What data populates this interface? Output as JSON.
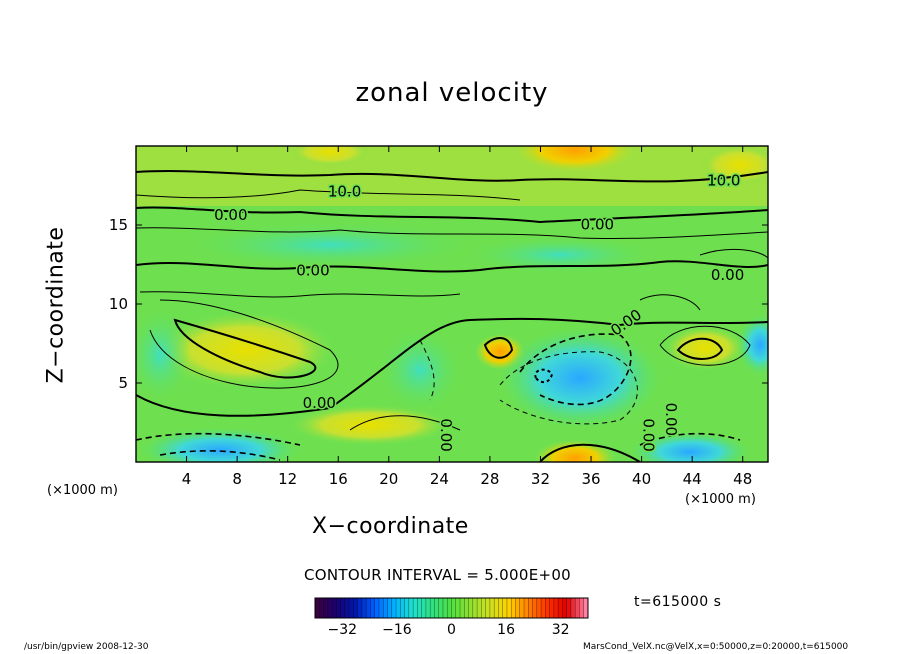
{
  "chart_data": {
    "type": "heatmap",
    "title": "zonal velocity",
    "xlabel": "X−coordinate",
    "ylabel": "Z−coordinate",
    "x_unit_label": "(×1000 m)",
    "xlim": [
      0,
      50
    ],
    "ylim": [
      0,
      20
    ],
    "x_ticks": [
      "4",
      "8",
      "12",
      "16",
      "20",
      "24",
      "28",
      "32",
      "36",
      "40",
      "44",
      "48"
    ],
    "y_ticks": [
      "5",
      "10",
      "15"
    ],
    "contour_labels": [
      "10.0",
      "10.0",
      "0.00",
      "0.00",
      "0.00",
      "0.00",
      "0.00",
      "0.00",
      "0.00",
      "0.00",
      "0.00"
    ],
    "contour_interval": "CONTOUR INTERVAL = 5.000E+00",
    "colorbar": {
      "range": [
        -40,
        40
      ],
      "ticks": [
        "−32",
        "−16",
        "0",
        "16",
        "32"
      ],
      "colors": [
        "#3a0040",
        "#1a0070",
        "#0018b0",
        "#0060ff",
        "#00b0ff",
        "#20e0d0",
        "#30e080",
        "#50e040",
        "#90e030",
        "#d0e020",
        "#ffd000",
        "#ff8000",
        "#ff3000",
        "#e00000",
        "#ff80a0"
      ]
    },
    "time": "t=615000 s",
    "grid": false
  },
  "footer": {
    "left": "/usr/bin/gpview   2008-12-30",
    "right": "MarsCond_VelX.nc@VelX,x=0:50000,z=0:20000,t=615000"
  }
}
